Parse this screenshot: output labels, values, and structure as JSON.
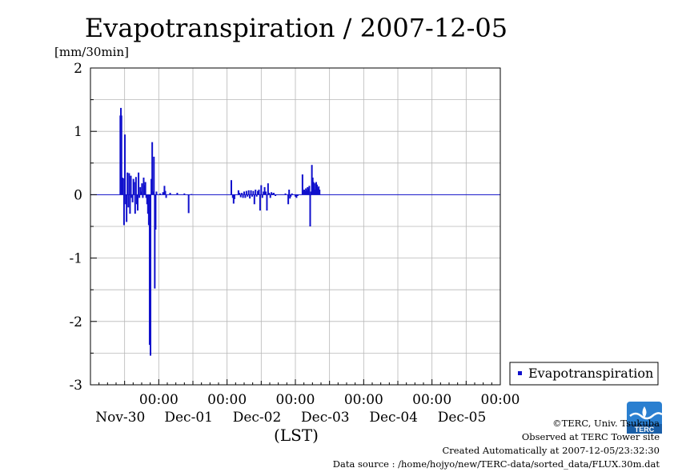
{
  "chart_data": {
    "type": "bar",
    "title": "Evapotranspiration / 2007-12-05",
    "ylabel": "[mm/30min]",
    "xlabel": "(LST)",
    "ylim": [
      -3,
      2
    ],
    "y_ticks": [
      "2",
      "1",
      "0",
      "-1",
      "-2",
      "-3"
    ],
    "x_ticks": [
      {
        "time": "00:00",
        "date": "Nov-30"
      },
      {
        "time": "00:00",
        "date": "Dec-01"
      },
      {
        "time": "00:00",
        "date": "Dec-02"
      },
      {
        "time": "00:00",
        "date": "Dec-03"
      },
      {
        "time": "00:00",
        "date": "Dec-04"
      },
      {
        "time": "00:00",
        "date": "Dec-05"
      }
    ],
    "grid": true,
    "legend": "right",
    "series": [
      {
        "name": "Evapotranspiration",
        "color": "#1010cc",
        "points": [
          [
            10.5,
            1.25
          ],
          [
            10.7,
            1.37
          ],
          [
            10.9,
            1.25
          ],
          [
            11.2,
            0.27
          ],
          [
            11.5,
            0.26
          ],
          [
            11.8,
            -0.48
          ],
          [
            12.1,
            0.95
          ],
          [
            12.4,
            -0.15
          ],
          [
            12.7,
            -0.43
          ],
          [
            13.0,
            0.35
          ],
          [
            13.3,
            -0.2
          ],
          [
            13.6,
            0.34
          ],
          [
            13.9,
            -0.3
          ],
          [
            14.2,
            0.3
          ],
          [
            14.5,
            -0.05
          ],
          [
            14.8,
            -0.12
          ],
          [
            15.1,
            0.25
          ],
          [
            15.4,
            0.2
          ],
          [
            15.7,
            -0.3
          ],
          [
            16.0,
            0.28
          ],
          [
            16.3,
            -0.15
          ],
          [
            16.6,
            -0.25
          ],
          [
            16.9,
            0.35
          ],
          [
            17.2,
            -0.05
          ],
          [
            17.5,
            0.12
          ],
          [
            17.8,
            0.05
          ],
          [
            18.1,
            0.18
          ],
          [
            18.4,
            -0.05
          ],
          [
            18.7,
            0.27
          ],
          [
            19.0,
            0.15
          ],
          [
            19.3,
            0.2
          ],
          [
            19.6,
            -0.05
          ],
          [
            19.9,
            -0.15
          ],
          [
            20.2,
            -0.3
          ],
          [
            20.5,
            -0.48
          ],
          [
            20.8,
            -2.37
          ],
          [
            21.1,
            -2.54
          ],
          [
            21.4,
            0.25
          ],
          [
            21.7,
            0.83
          ],
          [
            22.0,
            0.05
          ],
          [
            22.3,
            0.6
          ],
          [
            22.6,
            -1.48
          ],
          [
            22.9,
            -0.55
          ],
          [
            23.2,
            0.05
          ],
          [
            24.5,
            0.02
          ],
          [
            25.5,
            0.04
          ],
          [
            26.0,
            0.14
          ],
          [
            26.3,
            0.06
          ],
          [
            26.6,
            -0.05
          ],
          [
            28.0,
            0.03
          ],
          [
            30.5,
            0.03
          ],
          [
            33.0,
            0.02
          ],
          [
            34.5,
            -0.29
          ],
          [
            35.5,
            0.01
          ],
          [
            49.5,
            0.23
          ],
          [
            50.0,
            -0.05
          ],
          [
            50.3,
            -0.14
          ],
          [
            50.6,
            -0.07
          ],
          [
            52.0,
            0.07
          ],
          [
            52.4,
            0.03
          ],
          [
            52.8,
            -0.04
          ],
          [
            53.2,
            0.03
          ],
          [
            53.6,
            -0.05
          ],
          [
            54.0,
            0.05
          ],
          [
            54.4,
            -0.05
          ],
          [
            54.8,
            0.06
          ],
          [
            55.2,
            -0.03
          ],
          [
            55.6,
            0.07
          ],
          [
            56.0,
            -0.06
          ],
          [
            56.4,
            0.07
          ],
          [
            56.8,
            -0.03
          ],
          [
            57.2,
            0.06
          ],
          [
            57.6,
            -0.15
          ],
          [
            58.0,
            0.08
          ],
          [
            58.4,
            -0.03
          ],
          [
            58.8,
            0.06
          ],
          [
            59.2,
            0.08
          ],
          [
            59.6,
            -0.25
          ],
          [
            60.0,
            0.15
          ],
          [
            60.4,
            -0.05
          ],
          [
            60.8,
            0.05
          ],
          [
            61.2,
            0.12
          ],
          [
            61.6,
            0.05
          ],
          [
            62.0,
            -0.25
          ],
          [
            62.4,
            0.18
          ],
          [
            62.8,
            0.03
          ],
          [
            63.2,
            -0.05
          ],
          [
            63.6,
            0.04
          ],
          [
            64.0,
            0.02
          ],
          [
            64.4,
            0.03
          ],
          [
            65.0,
            -0.02
          ],
          [
            68.5,
            0.02
          ],
          [
            69.5,
            -0.15
          ],
          [
            69.8,
            0.08
          ],
          [
            70.1,
            -0.06
          ],
          [
            70.4,
            -0.03
          ],
          [
            70.8,
            0.02
          ],
          [
            72.0,
            -0.03
          ],
          [
            72.4,
            -0.05
          ],
          [
            72.8,
            -0.02
          ],
          [
            74.5,
            0.32
          ],
          [
            74.8,
            0.06
          ],
          [
            75.1,
            0.08
          ],
          [
            75.4,
            0.06
          ],
          [
            75.7,
            0.1
          ],
          [
            76.0,
            0.07
          ],
          [
            76.3,
            0.12
          ],
          [
            76.6,
            0.1
          ],
          [
            76.9,
            0.14
          ],
          [
            77.2,
            -0.5
          ],
          [
            77.5,
            0.05
          ],
          [
            77.8,
            0.47
          ],
          [
            78.1,
            0.27
          ],
          [
            78.4,
            0.2
          ],
          [
            78.7,
            0.18
          ],
          [
            79.0,
            0.08
          ],
          [
            79.3,
            0.2
          ],
          [
            79.6,
            0.16
          ],
          [
            79.9,
            0.1
          ],
          [
            80.2,
            0.13
          ],
          [
            80.5,
            0.08
          ]
        ]
      }
    ]
  },
  "credits": {
    "copyright": "©TERC, Univ. Tsukuba",
    "observed": "Observed at TERC Tower site",
    "created": "Created Automatically at 2007-12-05/23:32:30",
    "source": "Data source : /home/hojyo/new/TERC-data/sorted_data/FLUX.30m.dat",
    "logo_text": "TERC"
  }
}
